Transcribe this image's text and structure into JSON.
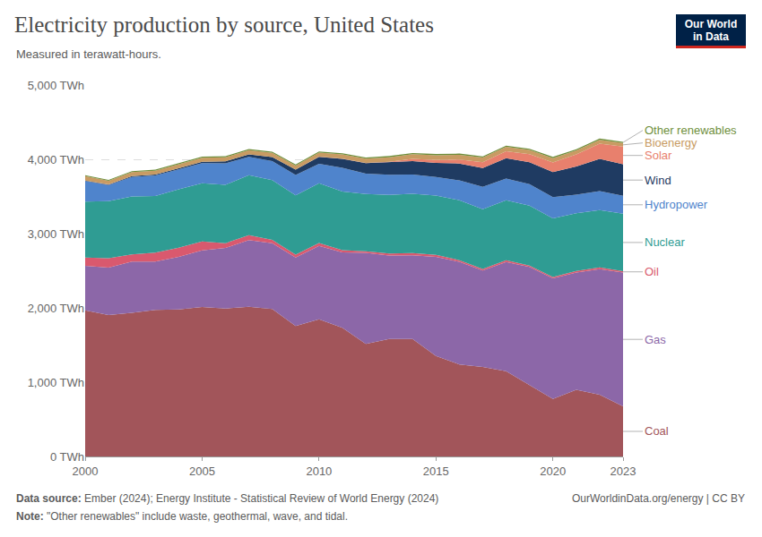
{
  "chart_data": {
    "type": "area",
    "title": "Electricity production by source, United States",
    "subtitle": "Measured in terawatt-hours.",
    "stacked": true,
    "grid": true,
    "legend": "right",
    "x": [
      2000,
      2001,
      2002,
      2003,
      2004,
      2005,
      2006,
      2007,
      2008,
      2009,
      2010,
      2011,
      2012,
      2013,
      2014,
      2015,
      2016,
      2017,
      2018,
      2019,
      2020,
      2021,
      2022,
      2023
    ],
    "xlim": [
      2000,
      2023
    ],
    "xticks": [
      2000,
      2005,
      2010,
      2015,
      2020,
      2023
    ],
    "ylim": [
      0,
      5000
    ],
    "yticks": [
      {
        "value": 0,
        "label": "0 TWh"
      },
      {
        "value": 1000,
        "label": "1,000 TWh"
      },
      {
        "value": 2000,
        "label": "2,000 TWh"
      },
      {
        "value": 3000,
        "label": "3,000 TWh"
      },
      {
        "value": 4000,
        "label": "4,000 TWh"
      },
      {
        "value": 5000,
        "label": "5,000 TWh"
      }
    ],
    "series": [
      {
        "name": "Coal",
        "color": "#a2555a",
        "values": [
          1966,
          1904,
          1933,
          1974,
          1978,
          2013,
          1991,
          2016,
          1986,
          1756,
          1847,
          1733,
          1514,
          1581,
          1582,
          1352,
          1239,
          1206,
          1149,
          965,
          774,
          898,
          832,
          675
        ]
      },
      {
        "name": "Gas",
        "color": "#8c67a8",
        "values": [
          601,
          639,
          691,
          650,
          710,
          761,
          816,
          897,
          883,
          921,
          988,
          1014,
          1226,
          1125,
          1127,
          1335,
          1380,
          1297,
          1469,
          1586,
          1624,
          1579,
          1690,
          1802
        ]
      },
      {
        "name": "Oil",
        "color": "#d9596e",
        "values": [
          111,
          125,
          95,
          119,
          121,
          122,
          64,
          66,
          46,
          39,
          37,
          30,
          23,
          27,
          30,
          28,
          24,
          21,
          25,
          18,
          17,
          19,
          23,
          16
        ]
      },
      {
        "name": "Nuclear",
        "color": "#2f9c93",
        "values": [
          754,
          769,
          780,
          764,
          788,
          782,
          787,
          806,
          806,
          799,
          807,
          790,
          769,
          789,
          797,
          797,
          806,
          805,
          807,
          809,
          790,
          778,
          772,
          775
        ]
      },
      {
        "name": "Hydropower",
        "color": "#4f84cc",
        "values": [
          275,
          217,
          264,
          276,
          268,
          270,
          289,
          247,
          254,
          273,
          260,
          319,
          276,
          269,
          259,
          249,
          268,
          300,
          292,
          288,
          285,
          251,
          255,
          240
        ]
      },
      {
        "name": "Wind",
        "color": "#1f3b62",
        "values": [
          5.6,
          6.7,
          10.4,
          11.2,
          14.1,
          17.8,
          26.6,
          34.5,
          55.4,
          73.9,
          94.7,
          120,
          140,
          168,
          182,
          191,
          227,
          254,
          273,
          295,
          338,
          378,
          434,
          425
        ]
      },
      {
        "name": "Solar",
        "color": "#e8806d",
        "values": [
          0.5,
          0.5,
          0.6,
          0.5,
          0.6,
          0.6,
          0.5,
          0.6,
          0.9,
          0.9,
          1.2,
          1.8,
          4.3,
          9,
          28,
          39,
          54,
          77,
          93,
          107,
          131,
          164,
          205,
          238
        ]
      },
      {
        "name": "Bioenergy",
        "color": "#c89b63",
        "values": [
          60,
          50,
          53,
          53,
          53,
          54,
          54,
          55,
          55,
          54,
          56,
          57,
          57,
          60,
          64,
          64,
          63,
          63,
          61,
          58,
          56,
          54,
          52,
          48
        ]
      },
      {
        "name": "Other renewables",
        "color": "#6f8f3c",
        "values": [
          14,
          13,
          14,
          14,
          15,
          15,
          15,
          15,
          15,
          15,
          15,
          16,
          16,
          16,
          16,
          16,
          16,
          16,
          16,
          16,
          17,
          16,
          16,
          16
        ]
      }
    ],
    "source": {
      "label": "Data source:",
      "text": "Ember (2024); Energy Institute - Statistical Review of World Energy (2024)"
    },
    "note": {
      "label": "Note:",
      "text": "\"Other renewables\" include waste, geothermal, wave, and tidal."
    },
    "url": "OurWorldinData.org/energy | CC BY",
    "logo": "Our World in Data"
  }
}
